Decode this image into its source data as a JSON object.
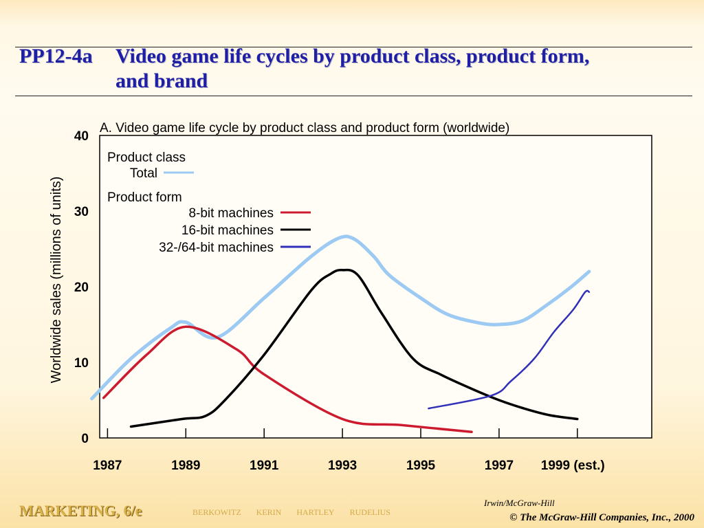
{
  "slide": {
    "code": "PP12-4a",
    "title_line1": "Video game life cycles by product class, product form,",
    "title_line2": "and brand"
  },
  "footer": {
    "book": "MARKETING, 6/e",
    "authors": [
      "BERKOWITZ",
      "KERIN",
      "HARTLEY",
      "RUDELIUS"
    ],
    "publisher": "Irwin/McGraw-Hill",
    "copyright": "© The McGraw-Hill Companies, Inc., 2000"
  },
  "colors": {
    "total": "#9ccaf2",
    "eight_bit": "#cc1a2e",
    "sixteen_bit": "#000000",
    "thirtytwo_bit": "#3030b8",
    "title": "#1f1fa6"
  },
  "chart_data": {
    "type": "line",
    "title": "A.  Video game life cycle by product class and product form (worldwide)",
    "xlabel": "",
    "ylabel": "Worldwide sales (millions of units)",
    "xlim": [
      1986.8,
      2000.9
    ],
    "ylim": [
      0,
      40
    ],
    "x_ticks": [
      1987,
      1989,
      1991,
      1993,
      1995,
      1997,
      1999
    ],
    "x_tick_labels": [
      "1987",
      "1989",
      "1991",
      "1993",
      "1995",
      "1997",
      "1999 (est.)"
    ],
    "y_ticks": [
      0,
      10,
      20,
      30,
      40
    ],
    "y_tick_labels": [
      "0",
      "10",
      "20",
      "30",
      "40"
    ],
    "grid": false,
    "legend": {
      "placement": "top-left",
      "groups": [
        {
          "heading": "Product class",
          "entries": [
            "Total"
          ]
        },
        {
          "heading": "Product form",
          "entries": [
            "8-bit machines",
            "16-bit machines",
            "32-/64-bit machines"
          ]
        }
      ]
    },
    "series": [
      {
        "name": "Total",
        "color_key": "total",
        "x": [
          1986.6,
          1987.6,
          1988.6,
          1989.0,
          1989.8,
          1991.0,
          1992.2,
          1992.9,
          1993.3,
          1993.8,
          1994.2,
          1995.0,
          1995.7,
          1996.5,
          1997.0,
          1997.6,
          1998.2,
          1998.8,
          1999.3
        ],
        "y": [
          5.2,
          10.5,
          14.5,
          15.3,
          13.3,
          18.5,
          24.0,
          26.4,
          26.3,
          24.0,
          21.5,
          18.5,
          16.3,
          15.2,
          15.0,
          15.5,
          17.5,
          19.8,
          22.0
        ]
      },
      {
        "name": "8-bit machines",
        "color_key": "eight_bit",
        "x": [
          1986.9,
          1988.0,
          1989.0,
          1990.3,
          1991.0,
          1993.0,
          1994.5,
          1996.3
        ],
        "y": [
          5.3,
          11.0,
          14.7,
          11.7,
          8.4,
          2.5,
          1.7,
          0.8
        ]
      },
      {
        "name": "16-bit machines",
        "color_key": "sixteen_bit",
        "x": [
          1987.6,
          1988.9,
          1989.5,
          1990.0,
          1991.0,
          1992.2,
          1992.7,
          1993.0,
          1993.4,
          1994.0,
          1994.8,
          1995.5,
          1996.3,
          1997.0,
          1997.7,
          1998.3,
          1999.0
        ],
        "y": [
          1.5,
          2.5,
          2.9,
          5.0,
          11.0,
          19.5,
          21.7,
          22.2,
          21.5,
          16.5,
          10.5,
          8.4,
          6.5,
          5.0,
          3.8,
          3.0,
          2.5
        ]
      },
      {
        "name": "32-/64-bit machines",
        "color_key": "thirtytwo_bit",
        "x": [
          1995.2,
          1996.8,
          1997.3,
          1997.9,
          1998.4,
          1998.9,
          1999.2,
          1999.3
        ],
        "y": [
          3.9,
          5.6,
          7.5,
          10.5,
          14.0,
          17.0,
          19.3,
          19.3
        ]
      }
    ]
  }
}
